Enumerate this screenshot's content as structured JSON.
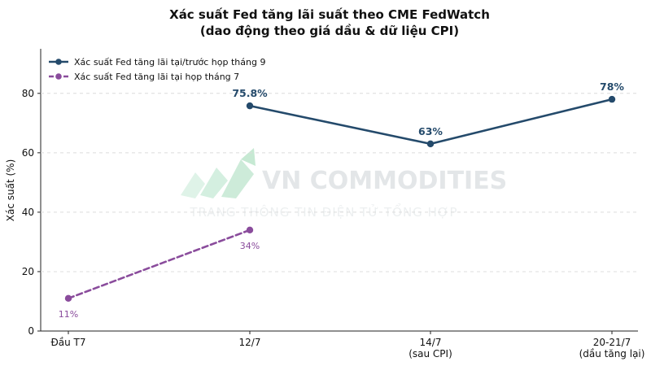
{
  "chart_data": {
    "type": "line",
    "title": "Xác suất Fed tăng lãi suất theo CME FedWatch",
    "subtitle": "(dao động theo giá dầu & dữ liệu CPI)",
    "xlabel": "",
    "ylabel": "Xác suất (%)",
    "ylim": [
      0,
      95
    ],
    "yticks": [
      0,
      20,
      40,
      60,
      80
    ],
    "categories": [
      "Đầu T7",
      "12/7",
      "14/7",
      "20-21/7"
    ],
    "category_sublabels": [
      "",
      "",
      "(sau CPI)",
      "(dầu tăng lại)"
    ],
    "grid": "horizontal-dashed",
    "legend_position": "top-left",
    "series": [
      {
        "name": "Xác suất Fed tăng lãi tại/trước họp tháng 9",
        "values": [
          null,
          75.8,
          63,
          78
        ],
        "labels": [
          "",
          "75.8%",
          "63%",
          "78%"
        ],
        "color": "#244a6b",
        "style": "solid"
      },
      {
        "name": "Xác suất Fed tăng lãi tại họp tháng 7",
        "values": [
          11,
          34,
          null,
          null
        ],
        "labels": [
          "11%",
          "34%",
          "",
          ""
        ],
        "color": "#8a4c9c",
        "style": "dashed"
      }
    ]
  },
  "watermark": {
    "brand": "VN COMMODITIES",
    "tagline": "TRANG THÔNG TIN ĐIỆN TỬ TỔNG HỢP"
  }
}
